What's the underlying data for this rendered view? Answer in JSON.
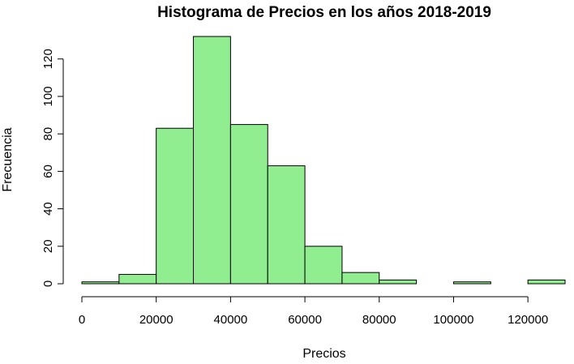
{
  "chart_data": {
    "type": "bar",
    "title": "Histograma de Precios en los años 2018-2019",
    "xlabel": "Precios",
    "ylabel": "Frecuencia",
    "bin_edges": [
      0,
      10000,
      20000,
      30000,
      40000,
      50000,
      60000,
      70000,
      80000,
      90000,
      100000,
      110000,
      120000,
      130000
    ],
    "values": [
      1,
      5,
      83,
      132,
      85,
      63,
      20,
      6,
      2,
      0,
      1,
      0,
      2
    ],
    "xticks": [
      0,
      20000,
      40000,
      60000,
      80000,
      100000,
      120000
    ],
    "yticks": [
      0,
      20,
      40,
      60,
      80,
      100,
      120
    ],
    "xlim": [
      0,
      130000
    ],
    "ylim": [
      0,
      132
    ],
    "bar_color": "#90EE90",
    "edge_color": "#000000",
    "grid": false
  }
}
